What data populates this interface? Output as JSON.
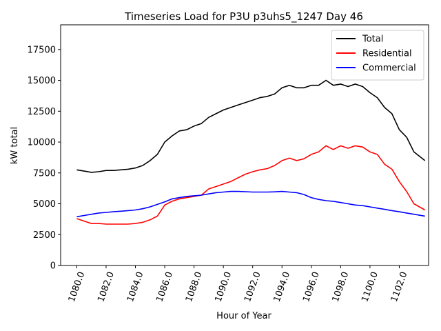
{
  "chart_data": {
    "type": "line",
    "title": "Timeseries Load for P3U p3uhs5_1247  Day 46",
    "xlabel": "Hour of Year",
    "ylabel": "kW total",
    "xlim": [
      1078.9,
      1104.0
    ],
    "ylim": [
      0,
      19500
    ],
    "xticks": [
      1080,
      1082,
      1084,
      1086,
      1088,
      1090,
      1092,
      1094,
      1096,
      1098,
      1100,
      1102
    ],
    "xtick_labels": [
      "1080.0",
      "1082.0",
      "1084.0",
      "1086.0",
      "1088.0",
      "1090.0",
      "1092.0",
      "1094.0",
      "1096.0",
      "1098.0",
      "1100.0",
      "1102.0"
    ],
    "yticks": [
      0,
      2500,
      5000,
      7500,
      10000,
      12500,
      15000,
      17500
    ],
    "ytick_labels": [
      "0",
      "2500",
      "5000",
      "7500",
      "10000",
      "12500",
      "15000",
      "17500"
    ],
    "grid": false,
    "legend_position": "top-right",
    "x": [
      1080.0,
      1080.5,
      1081.0,
      1081.5,
      1082.0,
      1082.5,
      1083.0,
      1083.5,
      1084.0,
      1084.5,
      1085.0,
      1085.5,
      1086.0,
      1086.5,
      1087.0,
      1087.5,
      1088.0,
      1088.5,
      1089.0,
      1089.5,
      1090.0,
      1090.5,
      1091.0,
      1091.5,
      1092.0,
      1092.5,
      1093.0,
      1093.5,
      1094.0,
      1094.5,
      1095.0,
      1095.5,
      1096.0,
      1096.5,
      1097.0,
      1097.5,
      1098.0,
      1098.5,
      1099.0,
      1099.5,
      1100.0,
      1100.5,
      1101.0,
      1101.5,
      1102.0,
      1102.5,
      1103.0,
      1103.75
    ],
    "series": [
      {
        "name": "Total",
        "color": "#000000",
        "values": [
          7750,
          7650,
          7550,
          7600,
          7700,
          7700,
          7750,
          7800,
          7900,
          8100,
          8500,
          9000,
          10000,
          10500,
          10900,
          11000,
          11300,
          11500,
          12000,
          12300,
          12600,
          12800,
          13000,
          13200,
          13400,
          13600,
          13700,
          13900,
          14400,
          14600,
          14400,
          14400,
          14600,
          14600,
          15000,
          14600,
          14700,
          14500,
          14700,
          14500,
          14000,
          13600,
          12800,
          12300,
          11000,
          10400,
          9200,
          8500
        ]
      },
      {
        "name": "Residential",
        "color": "#ff0000",
        "values": [
          3800,
          3600,
          3400,
          3400,
          3350,
          3350,
          3350,
          3350,
          3400,
          3500,
          3700,
          4000,
          4900,
          5200,
          5400,
          5500,
          5600,
          5700,
          6200,
          6400,
          6600,
          6800,
          7100,
          7400,
          7600,
          7750,
          7850,
          8100,
          8500,
          8700,
          8500,
          8650,
          9000,
          9200,
          9700,
          9400,
          9700,
          9500,
          9700,
          9600,
          9200,
          9000,
          8200,
          7800,
          6800,
          6000,
          5000,
          4500
        ]
      },
      {
        "name": "Commercial",
        "color": "#0000ff",
        "values": [
          3950,
          4050,
          4150,
          4250,
          4300,
          4350,
          4400,
          4450,
          4500,
          4600,
          4750,
          4950,
          5150,
          5400,
          5500,
          5600,
          5650,
          5700,
          5800,
          5900,
          5950,
          6000,
          6000,
          5980,
          5950,
          5950,
          5950,
          5970,
          6000,
          5950,
          5900,
          5750,
          5500,
          5350,
          5250,
          5200,
          5100,
          5000,
          4900,
          4850,
          4750,
          4650,
          4550,
          4450,
          4350,
          4250,
          4150,
          4000
        ]
      }
    ]
  }
}
